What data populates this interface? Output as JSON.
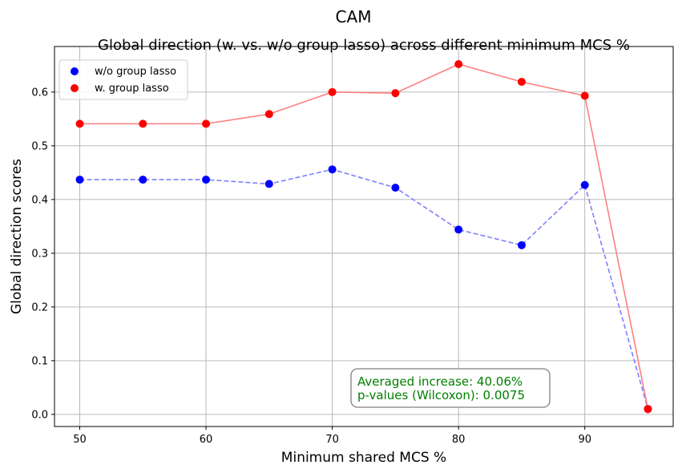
{
  "suptitle": "CAM",
  "chart_data": {
    "type": "line",
    "title": "Global direction (w. vs. w/o group lasso) across different minimum MCS %",
    "xlabel": "Minimum shared MCS %",
    "ylabel": "Global direction scores",
    "xlim": [
      48,
      97
    ],
    "ylim": [
      -0.0225,
      0.6848
    ],
    "xticks": [
      50,
      60,
      70,
      80,
      90
    ],
    "yticks": [
      0.0,
      0.1,
      0.2,
      0.3,
      0.4,
      0.5,
      0.6
    ],
    "ytick_labels": [
      "0.0",
      "0.1",
      "0.2",
      "0.3",
      "0.4",
      "0.5",
      "0.6"
    ],
    "grid": true,
    "legend_position": "top-left",
    "x": [
      50,
      55,
      60,
      65,
      70,
      75,
      80,
      85,
      90,
      95
    ],
    "series": [
      {
        "name": "w/o group lasso",
        "color": "#0000ff",
        "line_color": "#7f7fff",
        "line_style": "dashed",
        "values": [
          0.437,
          0.437,
          0.437,
          0.429,
          0.456,
          0.422,
          0.344,
          0.315,
          0.427,
          0.01
        ]
      },
      {
        "name": "w. group lasso",
        "color": "#ff0000",
        "line_color": "#ff7f7f",
        "line_style": "solid",
        "values": [
          0.541,
          0.541,
          0.541,
          0.559,
          0.6,
          0.598,
          0.652,
          0.619,
          0.593,
          0.01
        ]
      }
    ],
    "annotation": {
      "lines": [
        "Averaged increase: 40.06%",
        "p-values (Wilcoxon): 0.0075"
      ],
      "color": "#008000",
      "anchor": {
        "x": 72,
        "y": 0.03
      }
    }
  }
}
